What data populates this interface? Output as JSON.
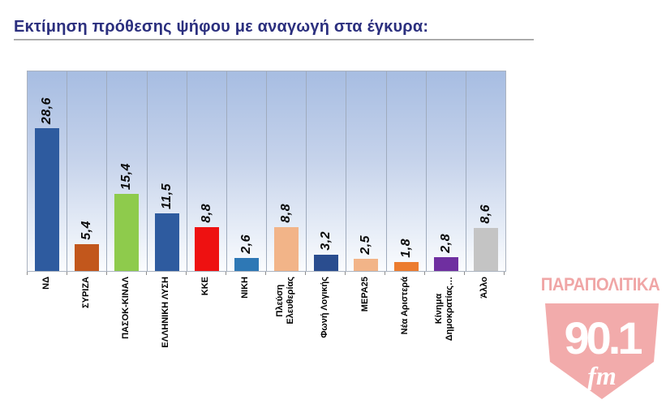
{
  "title": "Εκτίμηση πρόθεσης ψήφου με αναγωγή στα έγκυρα:",
  "chart_data": {
    "type": "bar",
    "title": "Εκτίμηση πρόθεσης ψήφου με αναγωγή στα έγκυρα:",
    "categories": [
      "ΝΔ",
      "ΣΥΡΙΖΑ",
      "ΠΑΣΟΚ-ΚΙΝΑΛ",
      "ΕΛΛΗΝΙΚΗ ΛΥΣΗ",
      "ΚΚΕ",
      "ΝΙΚΗ",
      "Πλεύση\nΕλευθερίας",
      "Φωνή Λογικής",
      "ΜΕΡΑ25",
      "Νέα Αριστερά",
      "Κίνημα\nΔημοκρατίας…",
      "Άλλο"
    ],
    "values": [
      28.6,
      5.4,
      15.4,
      11.5,
      8.8,
      2.6,
      8.8,
      3.2,
      2.5,
      1.8,
      2.8,
      8.6
    ],
    "value_labels": [
      "28,6",
      "5,4",
      "15,4",
      "11,5",
      "8,8",
      "2,6",
      "8,8",
      "3,2",
      "2,5",
      "1,8",
      "2,8",
      "8,6"
    ],
    "colors": [
      "#2e5b9f",
      "#c2571c",
      "#8ecb4c",
      "#2e5b9f",
      "#ee1111",
      "#2e78b5",
      "#f2b488",
      "#2a4d8f",
      "#f2b488",
      "#ec7c2f",
      "#6f2fa0",
      "#c4c4c4"
    ],
    "xlabel": "",
    "ylabel": "",
    "ylim": [
      0,
      40
    ],
    "grid": "vertical-category-separators",
    "legend": "none",
    "label_rotation_degrees": 90,
    "plot_background_gradient": [
      "#a7bde2",
      "#fbfcfe"
    ]
  },
  "logo": {
    "wordmark": "ΠΑΡΑΠΟΛΙΤΙΚΑ",
    "frequency": "90.1",
    "band": "fm",
    "color": "#f2abab"
  }
}
